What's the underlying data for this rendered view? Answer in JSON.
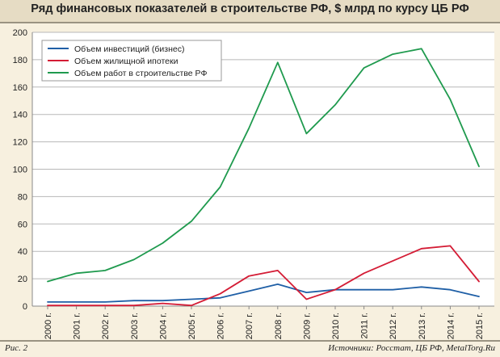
{
  "header": {
    "title": "Ряд финансовых показателей в строительстве РФ, $ млрд по курсу ЦБ РФ"
  },
  "footer": {
    "figure_label": "Рис. 2",
    "sources": "Источники: Росстат, ЦБ РФ, MetalTorg.Ru"
  },
  "colors": {
    "background": "#f7f0df",
    "investments": "#1f5fa6",
    "mortgage": "#d41c35",
    "construction": "#1f9a4e"
  },
  "chart_data": {
    "type": "line",
    "title": "Ряд финансовых показателей в строительстве РФ, $ млрд по курсу ЦБ РФ",
    "categories": [
      "2000 г.",
      "2001 г.",
      "2002 г.",
      "2003 г.",
      "2004 г.",
      "2005 г.",
      "2006 г.",
      "2007 г.",
      "2008 г.",
      "2009 г.",
      "2010 г.",
      "2011 г.",
      "2012 г.",
      "2013 г.",
      "2014 г.",
      "2015 г."
    ],
    "ylim": [
      0,
      200
    ],
    "yticks": [
      0,
      20,
      40,
      60,
      80,
      100,
      120,
      140,
      160,
      180,
      200
    ],
    "grid": true,
    "legend_position": "top-left",
    "series": [
      {
        "name": "Объем инвестиций (бизнес)",
        "color": "#1f5fa6",
        "values": [
          3,
          3,
          3,
          4,
          4,
          5,
          6,
          11,
          16,
          10,
          12,
          12,
          12,
          14,
          12,
          7
        ]
      },
      {
        "name": "Объем жилищной ипотеки",
        "color": "#d41c35",
        "values": [
          0.5,
          0.5,
          0.5,
          0.5,
          2,
          0.5,
          9,
          22,
          26,
          5,
          12,
          24,
          33,
          42,
          44,
          18
        ]
      },
      {
        "name": "Объем работ в строительстве РФ",
        "color": "#1f9a4e",
        "values": [
          18,
          24,
          26,
          34,
          46,
          62,
          87,
          130,
          178,
          126,
          147,
          174,
          184,
          188,
          151,
          102
        ]
      }
    ]
  }
}
